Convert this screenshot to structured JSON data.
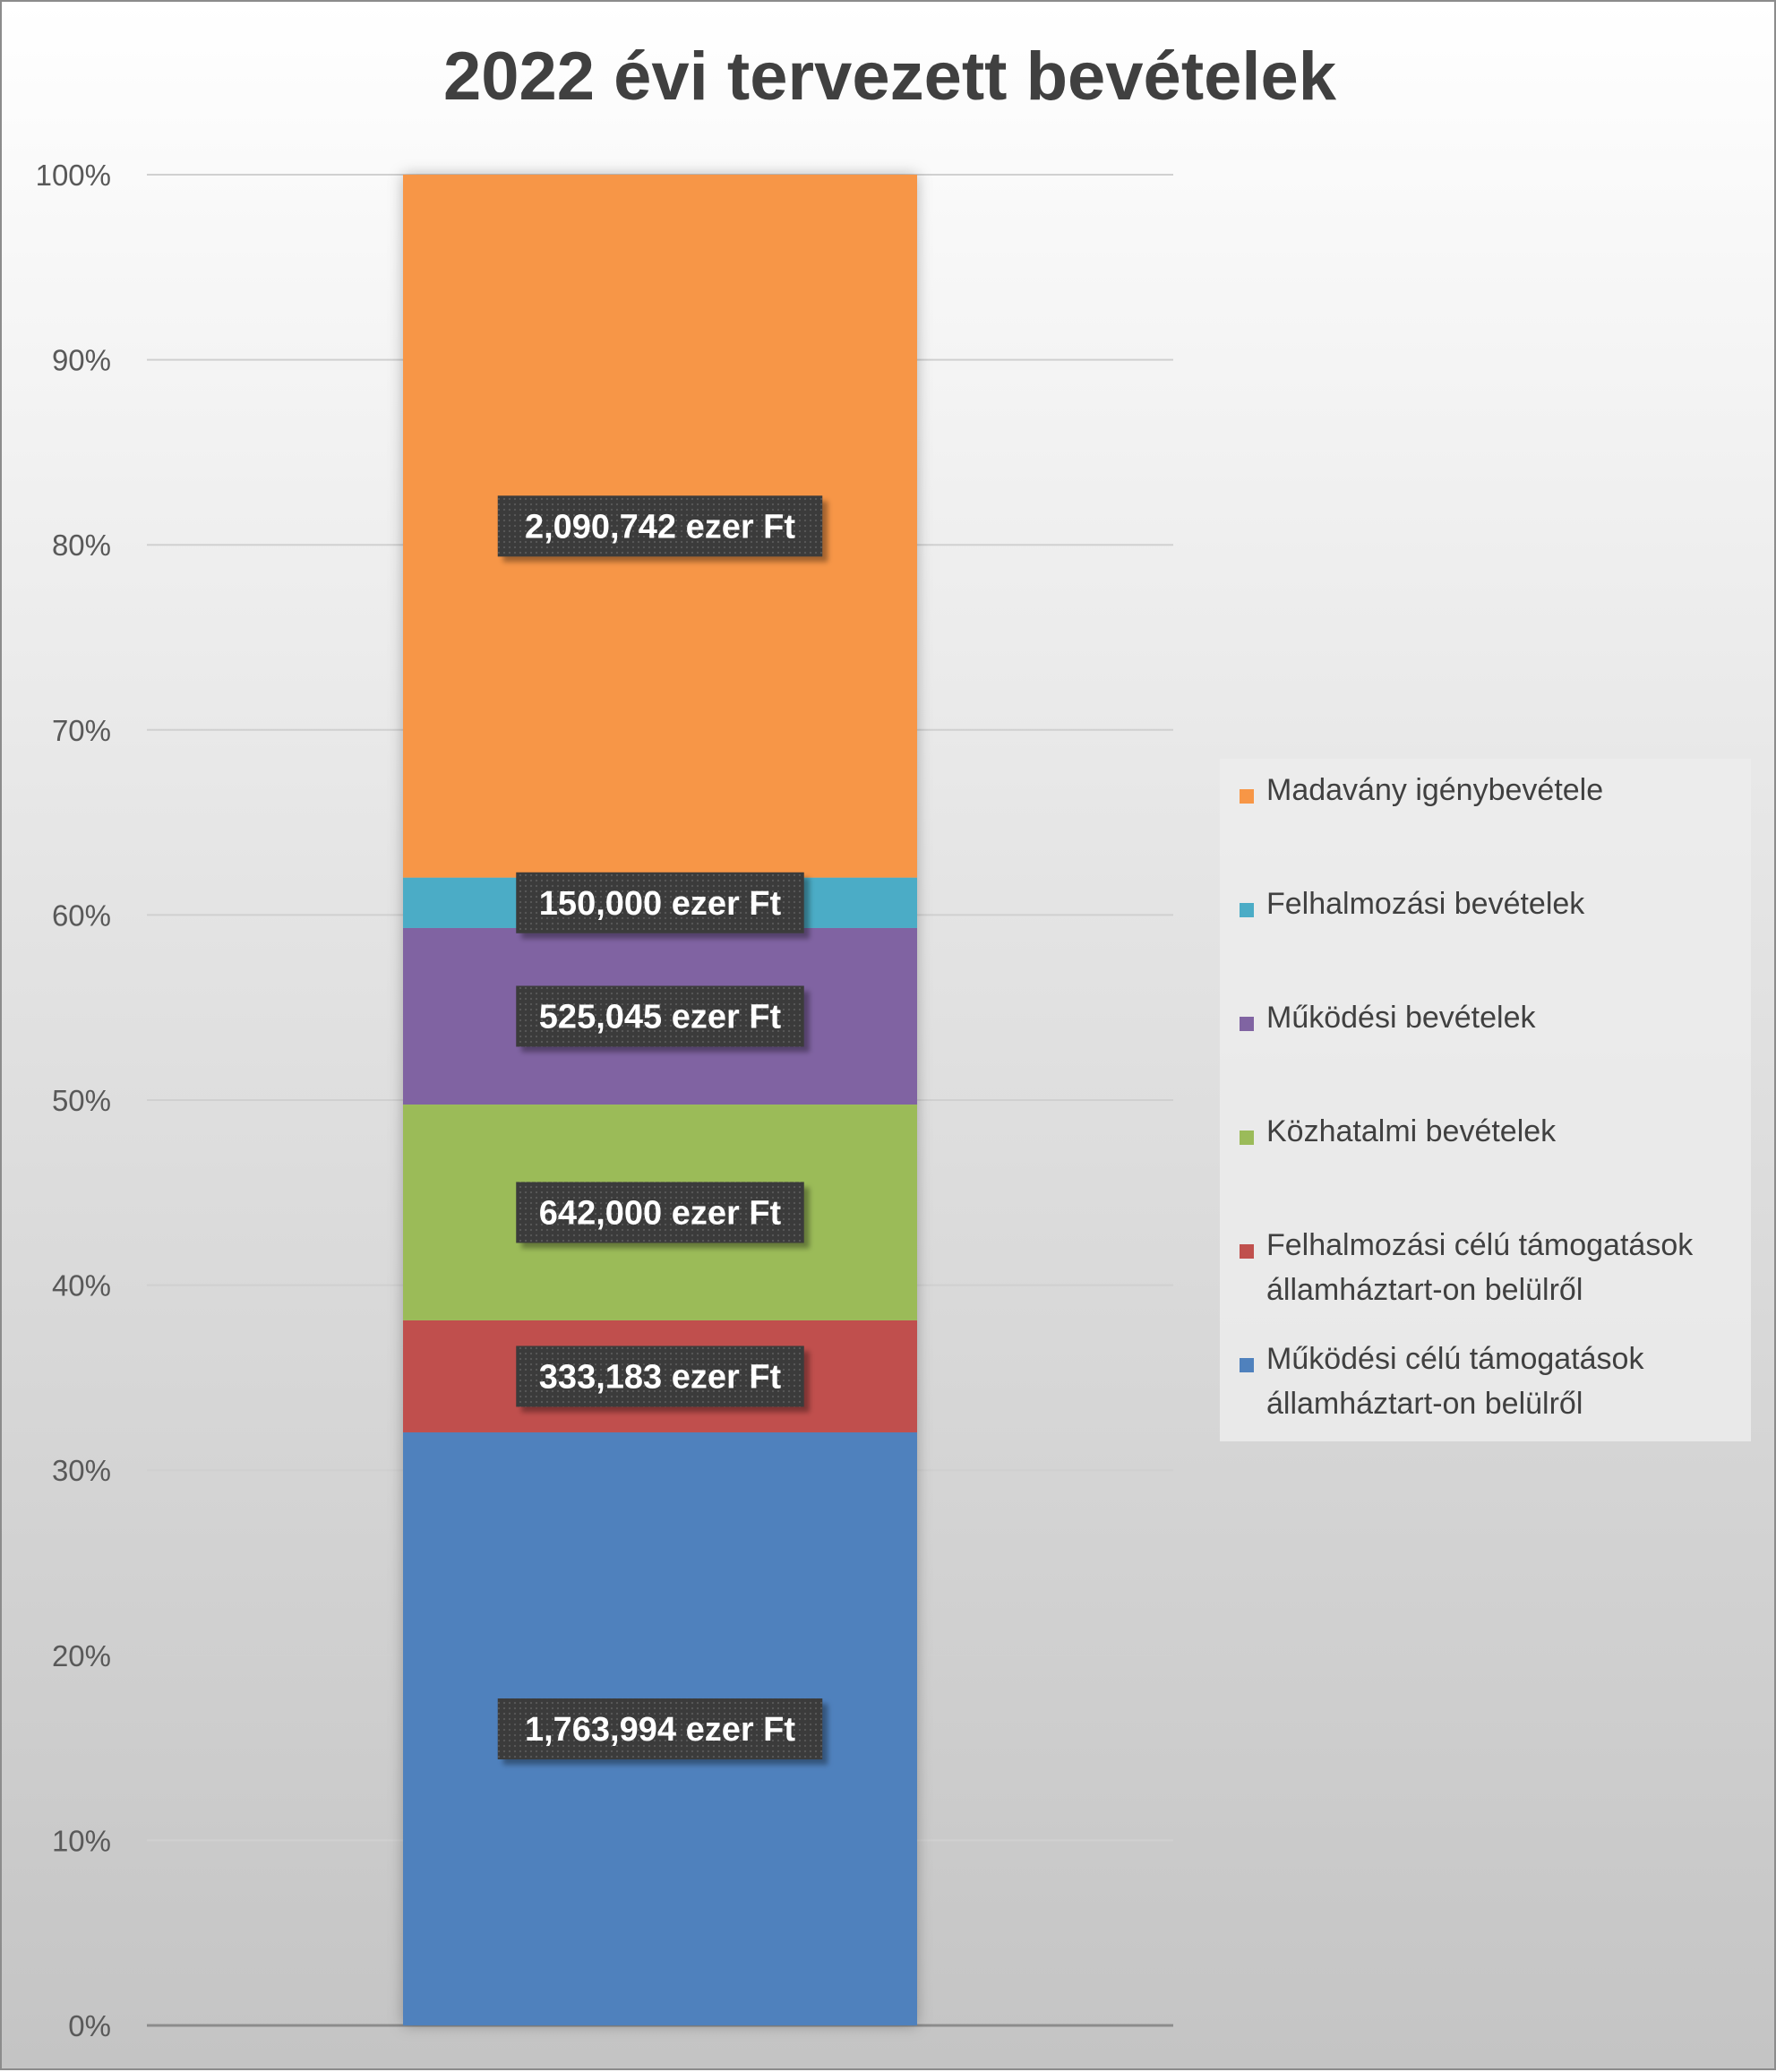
{
  "chart_data": {
    "type": "bar",
    "stacked": "percent",
    "title": "2022 évi tervezett bevételek",
    "xlabel": "",
    "ylabel": "",
    "ylim": [
      0,
      100
    ],
    "y_ticks": [
      "0%",
      "10%",
      "20%",
      "30%",
      "40%",
      "50%",
      "60%",
      "70%",
      "80%",
      "90%",
      "100%"
    ],
    "grid": true,
    "legend_position": "right",
    "categories": [
      ""
    ],
    "unit": "ezer Ft",
    "series": [
      {
        "name": "Működési célú támogatások államháztart-on belülről",
        "values": [
          1763994
        ],
        "label": "1,763,994 ezer Ft",
        "color": "#4f81bd"
      },
      {
        "name": "Felhalmozási célú támogatások államháztart-on belülről",
        "values": [
          333183
        ],
        "label": "333,183 ezer Ft",
        "color": "#c0504d"
      },
      {
        "name": "Közhatalmi bevételek",
        "values": [
          642000
        ],
        "label": "642,000 ezer Ft",
        "color": "#9bbb59"
      },
      {
        "name": "Működési bevételek",
        "values": [
          525045
        ],
        "label": "525,045 ezer Ft",
        "color": "#8064a2"
      },
      {
        "name": "Felhalmozási bevételek",
        "values": [
          150000
        ],
        "label": "150,000 ezer Ft",
        "color": "#4bacc6"
      },
      {
        "name": "Madavány igénybevétele",
        "values": [
          2090742
        ],
        "label": "2,090,742 ezer Ft",
        "color": "#f79646"
      }
    ]
  }
}
